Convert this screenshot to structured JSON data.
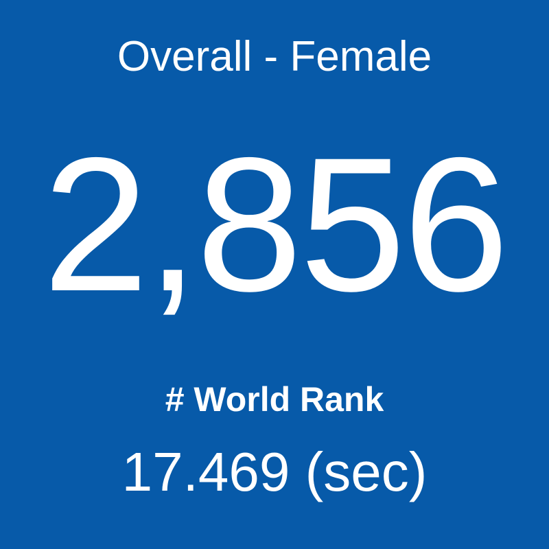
{
  "header": {
    "title": "Overall - Female"
  },
  "stat": {
    "value": "2,856",
    "label": "# World Rank",
    "time": "17.469 (sec)"
  }
}
